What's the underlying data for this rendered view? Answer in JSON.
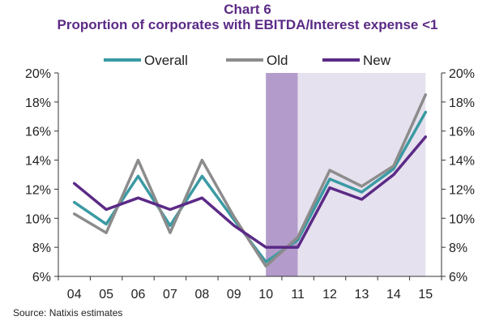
{
  "title_line1": "Chart 6",
  "title_line2": "Proportion of corporates with EBITDA/Interest expense <1",
  "source": "Source: Natixis estimates",
  "chart_data": {
    "type": "line",
    "categories": [
      "04",
      "05",
      "06",
      "07",
      "08",
      "09",
      "10",
      "11",
      "12",
      "13",
      "14",
      "15"
    ],
    "ylim": [
      6,
      20
    ],
    "yticks": [
      6,
      8,
      10,
      12,
      14,
      16,
      18,
      20
    ],
    "ytick_labels": [
      "6%",
      "8%",
      "10%",
      "12%",
      "14%",
      "16%",
      "18%",
      "20%"
    ],
    "legend_position": "top",
    "grid": false,
    "shaded_regions": [
      {
        "from": "10",
        "to": "11",
        "color": "#b39ccc"
      },
      {
        "from": "11",
        "to": "15",
        "color": "#e6e1ee"
      }
    ],
    "series": [
      {
        "name": "Overall",
        "color": "#3a9aa3",
        "values": [
          11.1,
          9.6,
          12.9,
          9.5,
          12.9,
          9.9,
          7.0,
          8.5,
          12.7,
          11.8,
          13.4,
          17.3
        ]
      },
      {
        "name": "Old",
        "color": "#8c8c8c",
        "values": [
          10.3,
          9.0,
          14.0,
          9.0,
          14.0,
          10.1,
          6.7,
          8.7,
          13.3,
          12.2,
          13.6,
          18.5
        ]
      },
      {
        "name": "New",
        "color": "#5b2a86",
        "values": [
          12.4,
          10.6,
          11.4,
          10.6,
          11.4,
          9.5,
          8.0,
          8.0,
          12.1,
          11.3,
          13.0,
          15.6
        ]
      }
    ]
  }
}
